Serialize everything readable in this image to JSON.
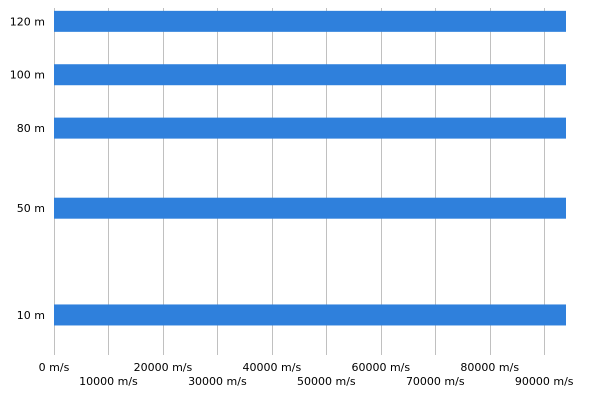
{
  "chart_data": {
    "type": "bar",
    "orientation": "horizontal",
    "title": "",
    "xlabel": "",
    "ylabel": "",
    "y_axis_type": "numeric",
    "y_values": [
      10,
      50,
      80,
      100,
      120
    ],
    "y_tick_labels": [
      "10 m",
      "50 m",
      "80 m",
      "100 m",
      "120 m"
    ],
    "y_range": [
      -5,
      125
    ],
    "values": [
      94000,
      94000,
      94000,
      94000,
      94000
    ],
    "xlim": [
      0,
      94000
    ],
    "x_ticks": [
      0,
      10000,
      20000,
      30000,
      40000,
      50000,
      60000,
      70000,
      80000,
      90000
    ],
    "x_tick_labels": [
      "0 m/s",
      "10000 m/s",
      "20000 m/s",
      "30000 m/s",
      "40000 m/s",
      "50000 m/s",
      "60000 m/s",
      "70000 m/s",
      "80000 m/s",
      "90000 m/s"
    ],
    "bar_color": "#2f80dc",
    "grid": true,
    "grid_color": "#c0c0c0",
    "legend": false
  }
}
